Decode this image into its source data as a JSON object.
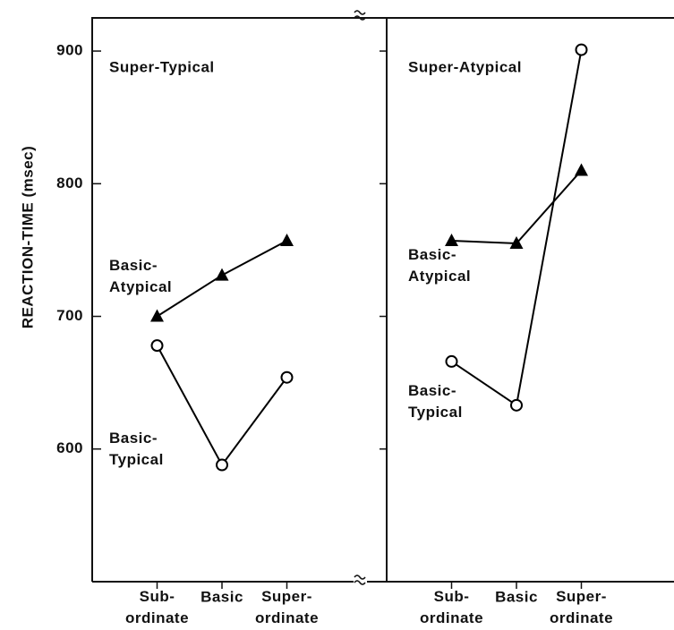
{
  "y_label": "REACTION-TIME (msec)",
  "chart_data": [
    {
      "type": "line",
      "title": "Super-Typical",
      "categories": [
        "Sub-ordinate",
        "Basic",
        "Super-ordinate"
      ],
      "ylim": [
        500,
        925
      ],
      "yticks": [
        600,
        700,
        800,
        900
      ],
      "ytick_labels": true,
      "series": [
        {
          "name": "Basic-Atypical",
          "color": "#000000",
          "marker": "triangle",
          "values": [
            700,
            731,
            757
          ]
        },
        {
          "name": "Basic-Typical",
          "color": "#000000",
          "marker": "circle",
          "values": [
            678,
            588,
            654
          ]
        }
      ]
    },
    {
      "type": "line",
      "title": "Super-Atypical",
      "categories": [
        "Sub-ordinate",
        "Basic",
        "Super-ordinate"
      ],
      "ylim": [
        500,
        925
      ],
      "yticks": [
        600,
        700,
        800,
        900
      ],
      "ytick_labels": false,
      "series": [
        {
          "name": "Basic-Atypical",
          "color": "#000000",
          "marker": "triangle",
          "values": [
            757,
            755,
            810
          ]
        },
        {
          "name": "Basic-Typical",
          "color": "#000000",
          "marker": "circle",
          "values": [
            666,
            633,
            901
          ]
        }
      ]
    }
  ]
}
